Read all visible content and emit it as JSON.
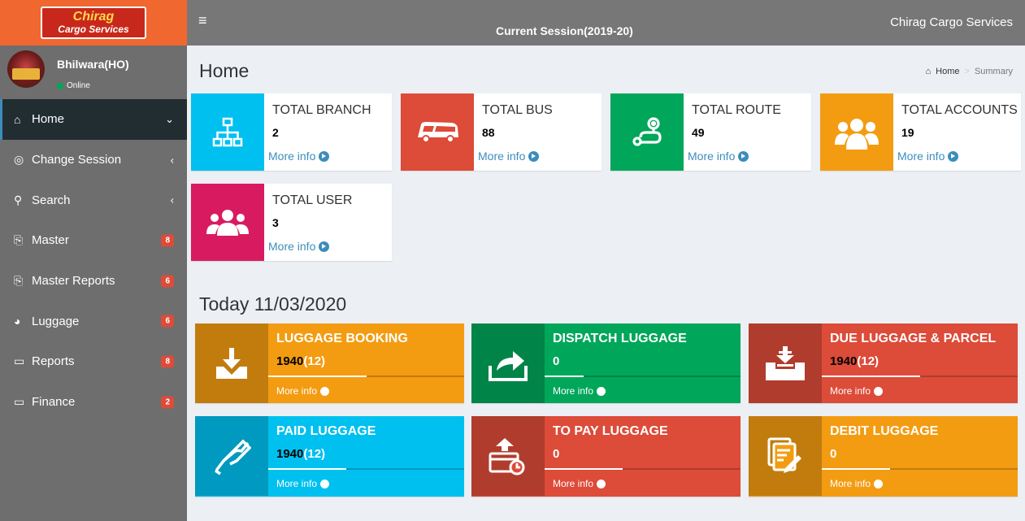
{
  "logo": {
    "top": "Chirag",
    "bottom": "Cargo Services"
  },
  "header": {
    "menu_glyph": "≡",
    "session": "Current Session(2019-20)",
    "company": "Chirag Cargo Services"
  },
  "sidebar": {
    "user": {
      "name": "Bhilwara(HO)",
      "status": "Online"
    },
    "items": [
      {
        "label": "Home",
        "icon": "dashboard-icon",
        "glyph": "⌂",
        "right": "⌄",
        "active": true
      },
      {
        "label": "Change Session",
        "icon": "dashboard-icon",
        "glyph": "◎",
        "right": "‹"
      },
      {
        "label": "Search",
        "icon": "search-icon",
        "glyph": "⚲",
        "right": "‹"
      },
      {
        "label": "Master",
        "icon": "copy-icon",
        "glyph": "⎘",
        "badge": "8"
      },
      {
        "label": "Master Reports",
        "icon": "copy-icon",
        "glyph": "⎘",
        "badge": "6"
      },
      {
        "label": "Luggage",
        "icon": "pie-chart-icon",
        "glyph": "◕",
        "badge": "6"
      },
      {
        "label": "Reports",
        "icon": "laptop-icon",
        "glyph": "▭",
        "badge": "8"
      },
      {
        "label": "Finance",
        "icon": "laptop-icon",
        "glyph": "▭",
        "badge": "2"
      }
    ]
  },
  "content": {
    "title": "Home",
    "breadcrumb": {
      "home": "Home",
      "separator": ">",
      "current": "Summary"
    },
    "today": "Today 11/03/2020",
    "more_info": "More info"
  },
  "stats": [
    {
      "label": "TOTAL BRANCH",
      "value": "2",
      "color": "#00c0ef",
      "icon": "sitemap-icon"
    },
    {
      "label": "TOTAL BUS",
      "value": "88",
      "color": "#dd4b39",
      "icon": "bus-icon"
    },
    {
      "label": "TOTAL ROUTE",
      "value": "49",
      "color": "#00a65a",
      "icon": "route-icon"
    },
    {
      "label": "TOTAL ACCOUNTS",
      "value": "19",
      "color": "#f39c12",
      "icon": "users-icon"
    },
    {
      "label": "TOTAL USER",
      "value": "3",
      "color": "#d81b60",
      "icon": "group-icon"
    }
  ],
  "tiles": [
    {
      "label": "LUGGAGE BOOKING",
      "value": "1940",
      "count": "(12)",
      "color": "#f39c12",
      "icon": "download-icon",
      "progress": 0.5
    },
    {
      "label": "DISPATCH LUGGAGE",
      "value": "0",
      "count": "",
      "color": "#00a65a",
      "icon": "share-icon",
      "progress": 0.2
    },
    {
      "label": "DUE LUGGAGE & PARCEL",
      "value": "1940",
      "count": "(12)",
      "color": "#dd4b39",
      "icon": "inbox-icon",
      "progress": 0.5
    },
    {
      "label": "PAID LUGGAGE",
      "value": "1940",
      "count": "(12)",
      "color": "#00c0ef",
      "icon": "payment-icon",
      "progress": 0.4
    },
    {
      "label": "TO PAY LUGGAGE",
      "value": "0",
      "count": "",
      "color": "#dd4b39",
      "icon": "card-clock-icon",
      "progress": 0.4
    },
    {
      "label": "DEBIT LUGGAGE",
      "value": "0",
      "count": "",
      "color": "#f39c12",
      "icon": "edit-doc-icon",
      "progress": 0.35
    }
  ]
}
